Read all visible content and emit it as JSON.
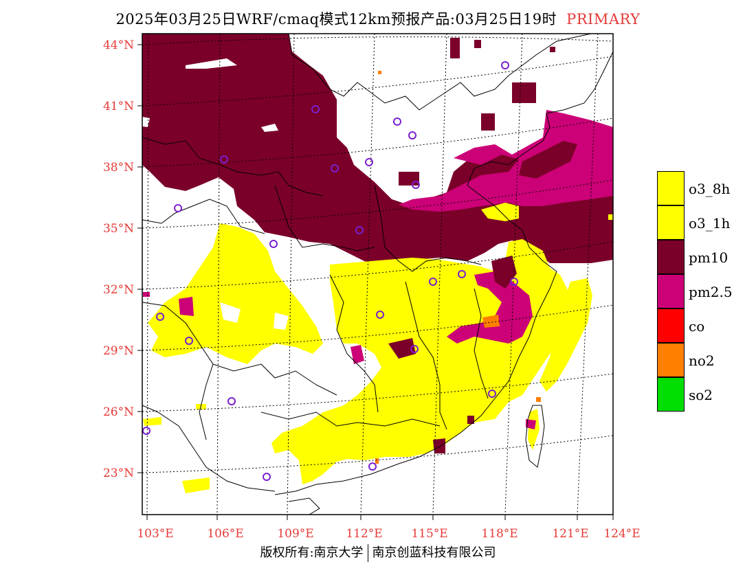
{
  "title": {
    "main": "2025年03月25日WRF/cmaq模式12km预报产品:03月25日19时",
    "tag": "PRIMARY"
  },
  "map": {
    "lat_labels": [
      "44°N",
      "41°N",
      "38°N",
      "35°N",
      "32°N",
      "29°N",
      "26°N",
      "23°N"
    ],
    "lon_labels": [
      "103°E",
      "106°E",
      "109°E",
      "112°E",
      "115°E",
      "118°E",
      "121°E",
      "124°E"
    ],
    "label_color": "#e53935"
  },
  "legend": [
    {
      "label": "o3_8h",
      "color": "#ffff00"
    },
    {
      "label": "o3_1h",
      "color": "#ffff00"
    },
    {
      "label": "pm10",
      "color": "#7b0029"
    },
    {
      "label": "pm2.5",
      "color": "#cc0077"
    },
    {
      "label": "co",
      "color": "#ff0000"
    },
    {
      "label": "no2",
      "color": "#ff7f00"
    },
    {
      "label": "so2",
      "color": "#00dd00"
    }
  ],
  "footer": {
    "left": "版权所有:南京大学",
    "right": "南京创蓝科技有限公司"
  }
}
